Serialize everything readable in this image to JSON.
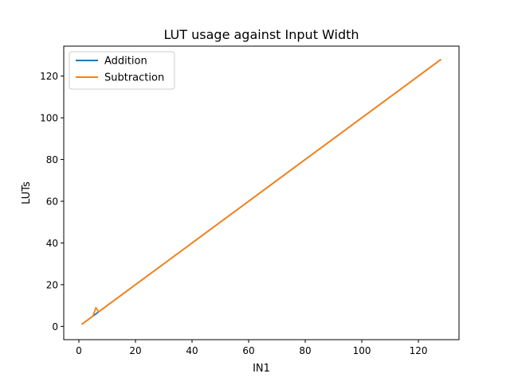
{
  "chart_data": {
    "type": "line",
    "title": "LUT usage against Input Width",
    "xlabel": "IN1",
    "ylabel": "LUTs",
    "xlim": [
      -5.35,
      134.35
    ],
    "ylim": [
      -6.35,
      134.35
    ],
    "xticks": [
      0,
      20,
      40,
      60,
      80,
      100,
      120
    ],
    "yticks": [
      0,
      20,
      40,
      60,
      80,
      100,
      120
    ],
    "grid": false,
    "legend_position": "top-left",
    "series": [
      {
        "name": "Addition",
        "color": "#1f77b4",
        "points": [
          [
            1,
            1
          ],
          [
            2,
            2
          ],
          [
            3,
            3
          ],
          [
            4,
            4
          ],
          [
            5,
            5
          ],
          [
            6,
            6
          ],
          [
            7,
            7
          ],
          [
            8,
            8
          ],
          [
            16,
            16
          ],
          [
            32,
            32
          ],
          [
            64,
            64
          ],
          [
            128,
            128
          ]
        ]
      },
      {
        "name": "Subtraction",
        "color": "#ff7f0e",
        "points": [
          [
            1,
            1
          ],
          [
            2,
            2
          ],
          [
            3,
            3
          ],
          [
            4,
            4
          ],
          [
            5,
            5
          ],
          [
            6,
            9
          ],
          [
            7,
            7
          ],
          [
            8,
            8
          ],
          [
            16,
            16
          ],
          [
            32,
            32
          ],
          [
            64,
            64
          ],
          [
            128,
            128
          ]
        ]
      }
    ]
  }
}
